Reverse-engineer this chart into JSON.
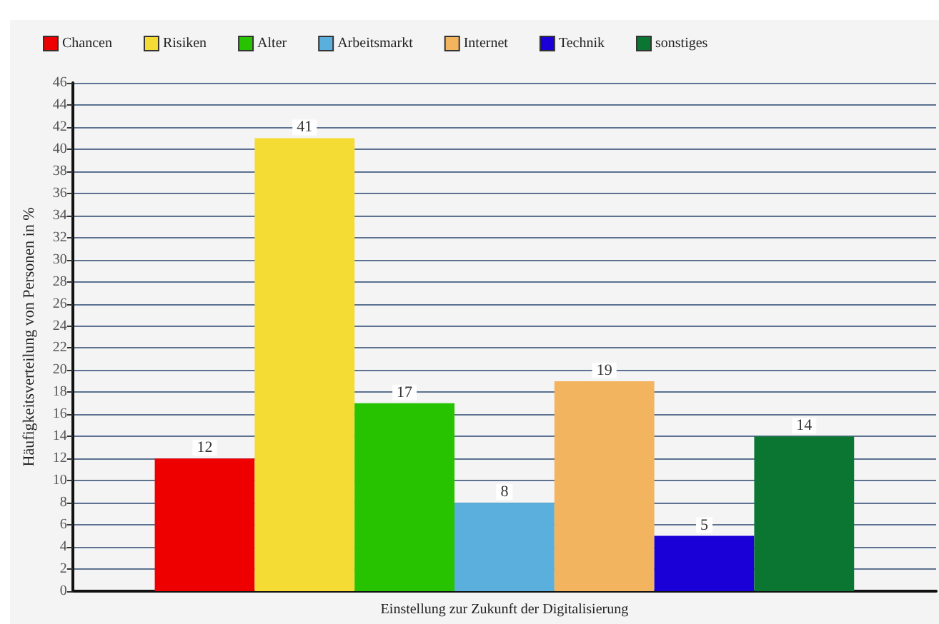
{
  "chart_data": {
    "type": "bar",
    "categories": [
      "Einstellung zur Zukunft der Digitalisierung"
    ],
    "ylabel": "Häufigkeitsverteilung von Personen in %",
    "series": [
      {
        "name": "Chancen",
        "color": "#ee0000",
        "values": [
          12
        ]
      },
      {
        "name": "Risiken",
        "color": "#f5dc35",
        "values": [
          41
        ]
      },
      {
        "name": "Alter",
        "color": "#28c300",
        "values": [
          17
        ]
      },
      {
        "name": "Arbeitsmarkt",
        "color": "#5aafdc",
        "values": [
          8
        ]
      },
      {
        "name": "Internet",
        "color": "#f2b45e",
        "values": [
          19
        ]
      },
      {
        "name": "Technik",
        "color": "#1a00d6",
        "values": [
          5
        ]
      },
      {
        "name": "sonstiges",
        "color": "#0b7632",
        "values": [
          14
        ]
      }
    ],
    "ylim": [
      0,
      46
    ],
    "yticks": [
      0,
      2,
      4,
      6,
      8,
      10,
      12,
      14,
      16,
      18,
      20,
      22,
      24,
      26,
      28,
      30,
      32,
      34,
      36,
      38,
      40,
      42,
      44,
      46
    ],
    "grid": "y",
    "legend": "top left",
    "data_labels": true
  }
}
